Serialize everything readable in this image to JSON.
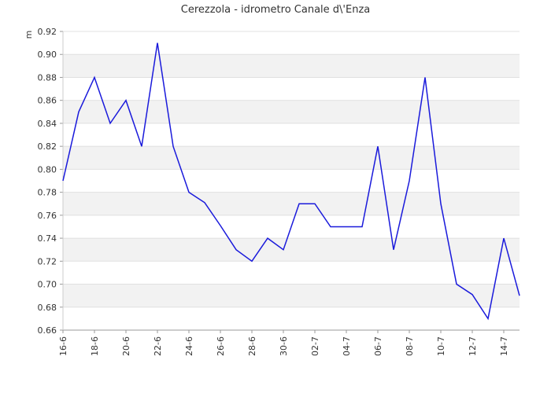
{
  "chart_data": {
    "type": "line",
    "title": "Cerezzola  - idrometro Canale d\\'Enza",
    "ylabel": "m",
    "xlabel": "",
    "ylim": [
      0.66,
      0.92
    ],
    "y_ticks": [
      "0.66",
      "0.68",
      "0.70",
      "0.72",
      "0.74",
      "0.76",
      "0.78",
      "0.80",
      "0.82",
      "0.84",
      "0.86",
      "0.88",
      "0.90",
      "0.92"
    ],
    "x_tick_labels": [
      "16-6",
      "18-6",
      "20-6",
      "22-6",
      "24-6",
      "26-6",
      "28-6",
      "30-6",
      "02-7",
      "04-7",
      "06-7",
      "08-7",
      "10-7",
      "12-7",
      "14-7"
    ],
    "grid": "horizontal bands",
    "line_color": "#1a1adb",
    "band_color": "#f2f2f2",
    "series": [
      {
        "values": [
          0.79,
          0.85,
          0.88,
          0.84,
          0.86,
          0.82,
          0.91,
          0.82,
          0.78,
          0.771,
          0.751,
          0.73,
          0.72,
          0.74,
          0.73,
          0.77,
          0.77,
          0.75,
          0.75,
          0.75,
          0.82,
          0.73,
          0.79,
          0.88,
          0.77,
          0.7,
          0.691,
          0.67,
          0.74,
          0.69
        ]
      }
    ]
  }
}
